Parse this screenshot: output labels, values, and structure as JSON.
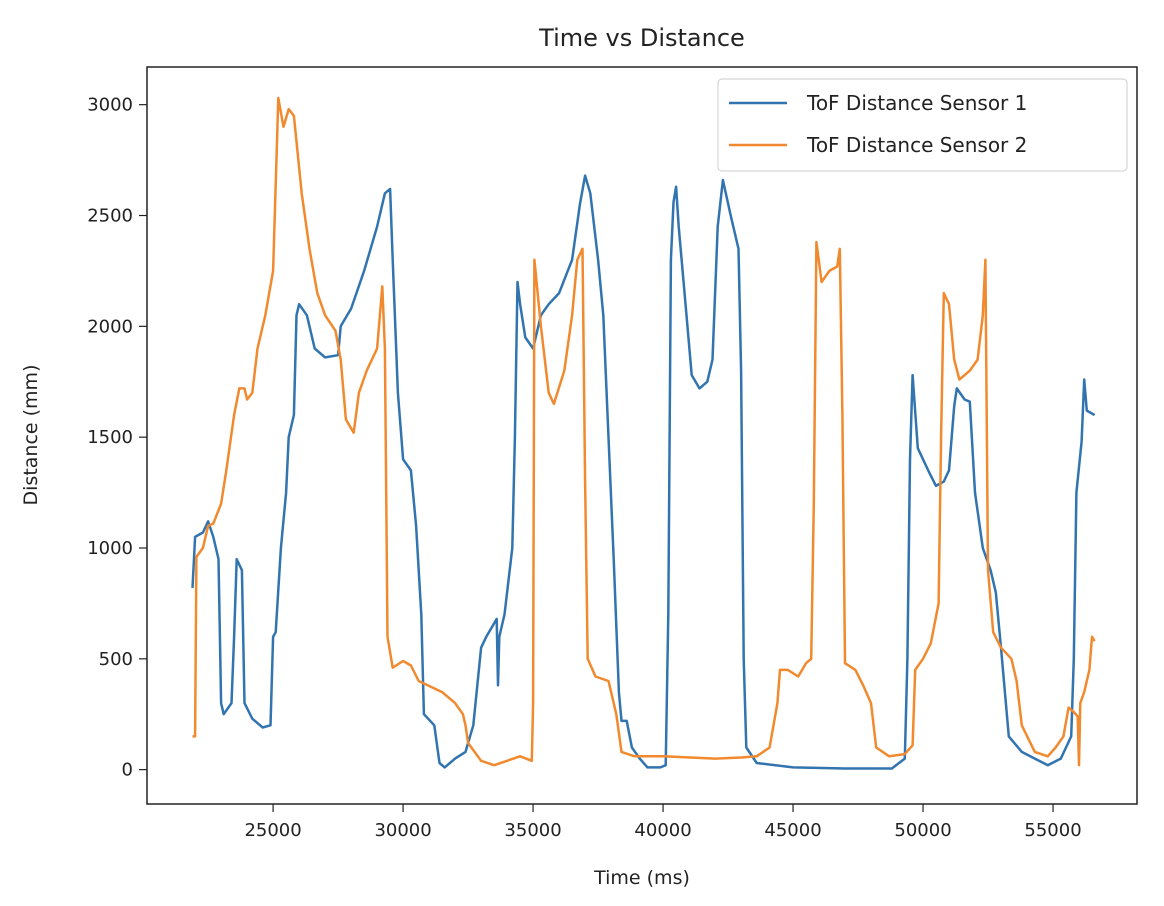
{
  "chart_data": {
    "type": "line",
    "title": "Time vs Distance",
    "xlabel": "Time (ms)",
    "ylabel": "Distance (mm)",
    "xlim": [
      20150,
      58230
    ],
    "ylim": [
      -155,
      3170
    ],
    "xticks": [
      25000,
      30000,
      35000,
      40000,
      45000,
      50000,
      55000
    ],
    "yticks": [
      0,
      500,
      1000,
      1500,
      2000,
      2500,
      3000
    ],
    "grid": false,
    "legend_position": "top-right",
    "series": [
      {
        "name": "ToF Distance Sensor 1",
        "color": "#3274b0",
        "points": [
          [
            21900,
            820
          ],
          [
            22000,
            1050
          ],
          [
            22300,
            1070
          ],
          [
            22500,
            1120
          ],
          [
            22700,
            1050
          ],
          [
            22900,
            950
          ],
          [
            23000,
            300
          ],
          [
            23100,
            250
          ],
          [
            23400,
            300
          ],
          [
            23500,
            600
          ],
          [
            23600,
            950
          ],
          [
            23800,
            900
          ],
          [
            23900,
            300
          ],
          [
            24200,
            230
          ],
          [
            24600,
            190
          ],
          [
            24900,
            200
          ],
          [
            25000,
            600
          ],
          [
            25100,
            620
          ],
          [
            25300,
            1000
          ],
          [
            25500,
            1250
          ],
          [
            25600,
            1500
          ],
          [
            25800,
            1600
          ],
          [
            25900,
            2050
          ],
          [
            26000,
            2100
          ],
          [
            26300,
            2050
          ],
          [
            26600,
            1900
          ],
          [
            27000,
            1860
          ],
          [
            27500,
            1870
          ],
          [
            27600,
            2000
          ],
          [
            28000,
            2080
          ],
          [
            28500,
            2250
          ],
          [
            29000,
            2450
          ],
          [
            29300,
            2600
          ],
          [
            29500,
            2620
          ],
          [
            29600,
            2300
          ],
          [
            29800,
            1700
          ],
          [
            30000,
            1400
          ],
          [
            30300,
            1350
          ],
          [
            30500,
            1100
          ],
          [
            30700,
            700
          ],
          [
            30800,
            250
          ],
          [
            31200,
            200
          ],
          [
            31400,
            30
          ],
          [
            31600,
            10
          ],
          [
            32000,
            50
          ],
          [
            32400,
            80
          ],
          [
            32700,
            200
          ],
          [
            33000,
            550
          ],
          [
            33200,
            600
          ],
          [
            33600,
            680
          ],
          [
            33650,
            380
          ],
          [
            33700,
            600
          ],
          [
            33900,
            700
          ],
          [
            34200,
            1000
          ],
          [
            34300,
            1500
          ],
          [
            34400,
            2200
          ],
          [
            34500,
            2100
          ],
          [
            34700,
            1950
          ],
          [
            35000,
            1900
          ],
          [
            35300,
            2050
          ],
          [
            35600,
            2100
          ],
          [
            36000,
            2150
          ],
          [
            36500,
            2300
          ],
          [
            36800,
            2550
          ],
          [
            37000,
            2680
          ],
          [
            37200,
            2600
          ],
          [
            37500,
            2300
          ],
          [
            37700,
            2050
          ],
          [
            37900,
            1500
          ],
          [
            38100,
            950
          ],
          [
            38300,
            350
          ],
          [
            38400,
            220
          ],
          [
            38600,
            220
          ],
          [
            38800,
            100
          ],
          [
            39100,
            50
          ],
          [
            39400,
            10
          ],
          [
            39900,
            10
          ],
          [
            40100,
            20
          ],
          [
            40200,
            700
          ],
          [
            40300,
            2300
          ],
          [
            40400,
            2560
          ],
          [
            40500,
            2630
          ],
          [
            40600,
            2450
          ],
          [
            40900,
            2050
          ],
          [
            41100,
            1780
          ],
          [
            41400,
            1720
          ],
          [
            41700,
            1750
          ],
          [
            41900,
            1850
          ],
          [
            42100,
            2450
          ],
          [
            42300,
            2660
          ],
          [
            42600,
            2500
          ],
          [
            42900,
            2350
          ],
          [
            43000,
            1800
          ],
          [
            43100,
            500
          ],
          [
            43200,
            100
          ],
          [
            43600,
            30
          ],
          [
            45000,
            10
          ],
          [
            47000,
            5
          ],
          [
            48800,
            5
          ],
          [
            49300,
            50
          ],
          [
            49400,
            500
          ],
          [
            49500,
            1400
          ],
          [
            49600,
            1780
          ],
          [
            49800,
            1450
          ],
          [
            50200,
            1350
          ],
          [
            50500,
            1280
          ],
          [
            50800,
            1300
          ],
          [
            51000,
            1350
          ],
          [
            51200,
            1640
          ],
          [
            51300,
            1720
          ],
          [
            51600,
            1670
          ],
          [
            51800,
            1660
          ],
          [
            52000,
            1250
          ],
          [
            52300,
            1000
          ],
          [
            52600,
            900
          ],
          [
            52800,
            800
          ],
          [
            53000,
            550
          ],
          [
            53300,
            150
          ],
          [
            53800,
            80
          ],
          [
            54300,
            50
          ],
          [
            54800,
            20
          ],
          [
            55300,
            50
          ],
          [
            55700,
            150
          ],
          [
            55800,
            500
          ],
          [
            55900,
            1250
          ],
          [
            56100,
            1480
          ],
          [
            56200,
            1760
          ],
          [
            56300,
            1620
          ],
          [
            56600,
            1600
          ]
        ]
      },
      {
        "name": "ToF Distance Sensor 2",
        "color": "#f18a2f",
        "points": [
          [
            21900,
            150
          ],
          [
            22000,
            150
          ],
          [
            22050,
            960
          ],
          [
            22300,
            1000
          ],
          [
            22500,
            1100
          ],
          [
            22700,
            1110
          ],
          [
            23000,
            1200
          ],
          [
            23200,
            1350
          ],
          [
            23500,
            1600
          ],
          [
            23700,
            1720
          ],
          [
            23900,
            1720
          ],
          [
            24000,
            1670
          ],
          [
            24200,
            1700
          ],
          [
            24400,
            1900
          ],
          [
            24700,
            2050
          ],
          [
            25000,
            2250
          ],
          [
            25200,
            3030
          ],
          [
            25400,
            2900
          ],
          [
            25600,
            2980
          ],
          [
            25800,
            2950
          ],
          [
            26100,
            2600
          ],
          [
            26400,
            2350
          ],
          [
            26700,
            2150
          ],
          [
            27000,
            2050
          ],
          [
            27400,
            1980
          ],
          [
            27600,
            1850
          ],
          [
            27800,
            1580
          ],
          [
            28100,
            1520
          ],
          [
            28300,
            1700
          ],
          [
            28600,
            1800
          ],
          [
            29000,
            1900
          ],
          [
            29200,
            2180
          ],
          [
            29300,
            1900
          ],
          [
            29400,
            600
          ],
          [
            29600,
            460
          ],
          [
            30000,
            490
          ],
          [
            30300,
            470
          ],
          [
            30600,
            400
          ],
          [
            31500,
            350
          ],
          [
            32000,
            300
          ],
          [
            32300,
            250
          ],
          [
            32400,
            200
          ],
          [
            32500,
            120
          ],
          [
            33000,
            40
          ],
          [
            33500,
            20
          ],
          [
            34000,
            40
          ],
          [
            34500,
            60
          ],
          [
            34950,
            40
          ],
          [
            35000,
            300
          ],
          [
            35050,
            2300
          ],
          [
            35300,
            2000
          ],
          [
            35600,
            1700
          ],
          [
            35800,
            1650
          ],
          [
            36200,
            1800
          ],
          [
            36500,
            2050
          ],
          [
            36700,
            2300
          ],
          [
            36900,
            2350
          ],
          [
            37000,
            1300
          ],
          [
            37100,
            500
          ],
          [
            37400,
            420
          ],
          [
            37900,
            400
          ],
          [
            38200,
            250
          ],
          [
            38400,
            80
          ],
          [
            38900,
            60
          ],
          [
            40000,
            60
          ],
          [
            42000,
            50
          ],
          [
            43000,
            55
          ],
          [
            43600,
            60
          ],
          [
            44100,
            100
          ],
          [
            44400,
            300
          ],
          [
            44500,
            450
          ],
          [
            44800,
            450
          ],
          [
            45200,
            420
          ],
          [
            45500,
            480
          ],
          [
            45700,
            500
          ],
          [
            45800,
            1200
          ],
          [
            45900,
            2380
          ],
          [
            46100,
            2200
          ],
          [
            46400,
            2250
          ],
          [
            46700,
            2270
          ],
          [
            46800,
            2350
          ],
          [
            46900,
            1600
          ],
          [
            47000,
            480
          ],
          [
            47400,
            450
          ],
          [
            47700,
            380
          ],
          [
            48000,
            300
          ],
          [
            48200,
            100
          ],
          [
            48700,
            60
          ],
          [
            49300,
            70
          ],
          [
            49600,
            110
          ],
          [
            49700,
            450
          ],
          [
            50000,
            500
          ],
          [
            50300,
            570
          ],
          [
            50600,
            750
          ],
          [
            50700,
            1530
          ],
          [
            50800,
            2150
          ],
          [
            51000,
            2100
          ],
          [
            51200,
            1850
          ],
          [
            51400,
            1760
          ],
          [
            51800,
            1800
          ],
          [
            52100,
            1850
          ],
          [
            52300,
            2050
          ],
          [
            52400,
            2300
          ],
          [
            52500,
            900
          ],
          [
            52700,
            620
          ],
          [
            53000,
            550
          ],
          [
            53400,
            500
          ],
          [
            53600,
            400
          ],
          [
            53800,
            200
          ],
          [
            54300,
            80
          ],
          [
            54800,
            60
          ],
          [
            55100,
            100
          ],
          [
            55400,
            150
          ],
          [
            55600,
            280
          ],
          [
            55800,
            260
          ],
          [
            55950,
            240
          ],
          [
            56000,
            20
          ],
          [
            56050,
            300
          ],
          [
            56200,
            350
          ],
          [
            56400,
            450
          ],
          [
            56500,
            600
          ],
          [
            56600,
            580
          ]
        ]
      }
    ]
  }
}
